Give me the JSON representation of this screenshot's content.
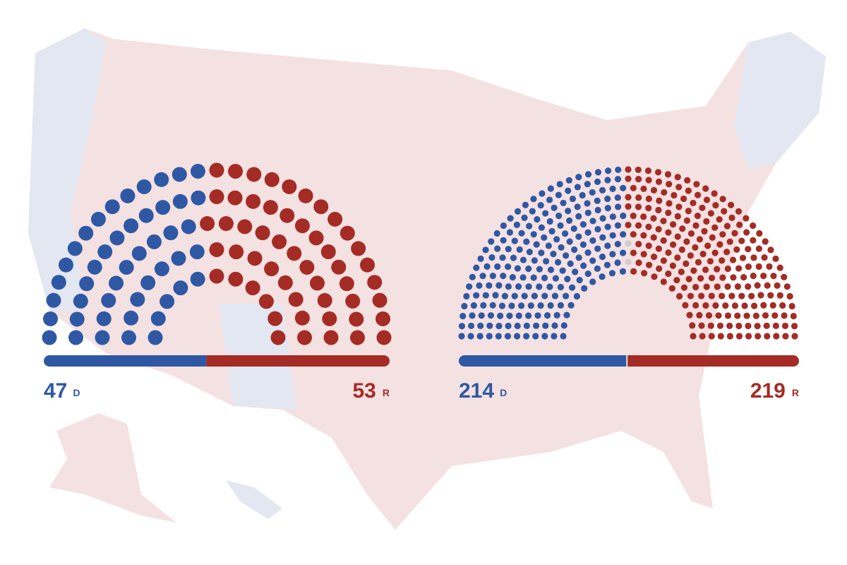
{
  "chart_data": [
    {
      "type": "parliament",
      "categories": [
        "D",
        "R"
      ],
      "values": [
        47,
        53
      ],
      "colors": [
        "#2f58a4",
        "#a52b25"
      ]
    },
    {
      "type": "parliament",
      "categories": [
        "D",
        null,
        "R"
      ],
      "values": [
        214,
        2,
        219
      ],
      "colors": [
        "#2f58a4",
        "#cfcfcf",
        "#a52b25"
      ]
    }
  ]
}
